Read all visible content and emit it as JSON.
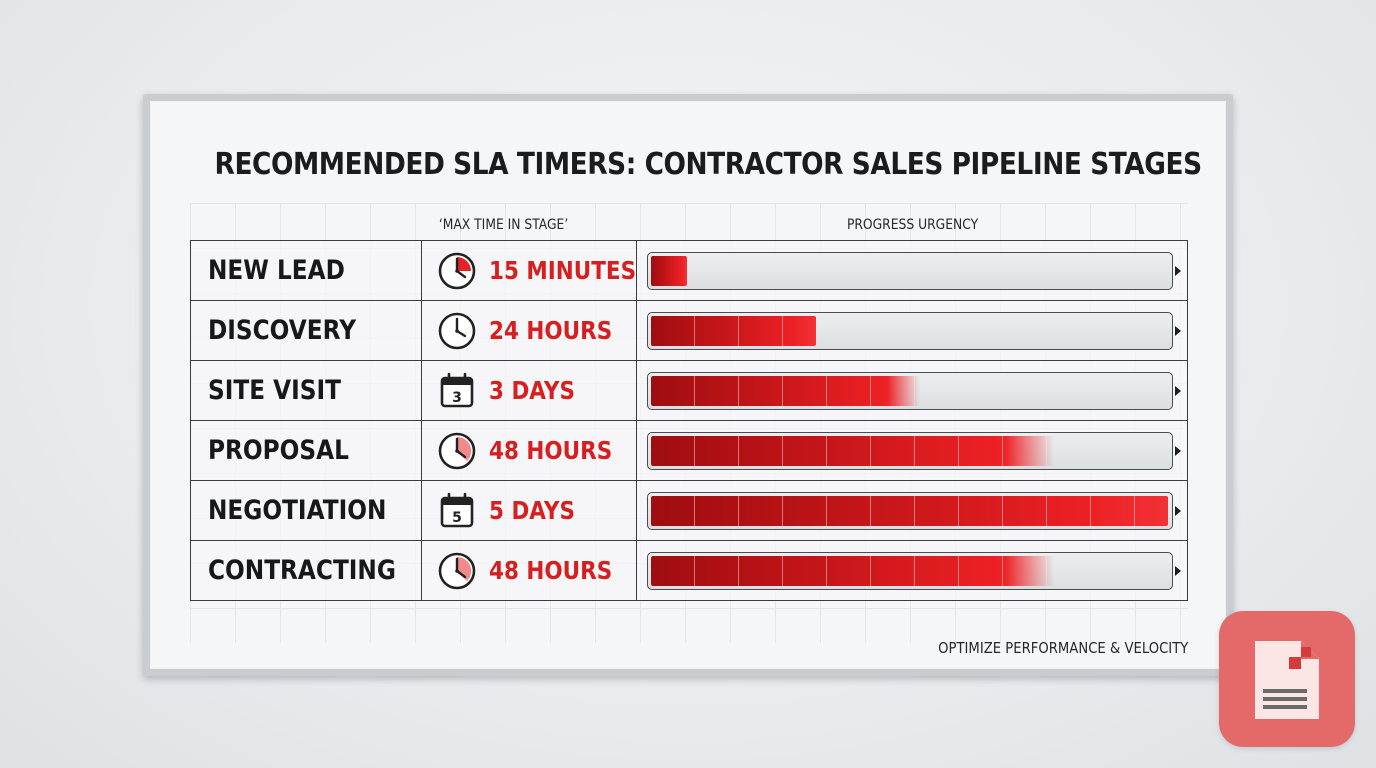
{
  "title": "RECOMMENDED SLA TIMERS: CONTRACTOR SALES PIPELINE STAGES",
  "headers": {
    "max_time": "‘MAX TIME IN STAGE’",
    "urgency": "PROGRESS URGENCY"
  },
  "colors": {
    "accent_red": "#d81f1f",
    "bar_dark": "#9e0d10",
    "bar_bright": "#f13236",
    "board": "#f5f6f7",
    "badge": "#e46a6a"
  },
  "stages": [
    {
      "stage": "NEW LEAD",
      "icon": "stopwatch-icon",
      "time": "15 MINUTES",
      "urgency": 0.07
    },
    {
      "stage": "DISCOVERY",
      "icon": "clock-icon",
      "time": "24 HOURS",
      "urgency": 0.32
    },
    {
      "stage": "SITE VISIT",
      "icon": "calendar-icon",
      "icon_text": "3",
      "time": "3 DAYS",
      "urgency": 0.52
    },
    {
      "stage": "PROPOSAL",
      "icon": "stopwatch-icon",
      "time": "48 HOURS",
      "urgency": 0.78
    },
    {
      "stage": "NEGOTIATION",
      "icon": "calendar-icon",
      "icon_text": "5",
      "time": "5 DAYS",
      "urgency": 1.0
    },
    {
      "stage": "CONTRACTING",
      "icon": "stopwatch-icon",
      "time": "48 HOURS",
      "urgency": 0.78
    }
  ],
  "footer": "OPTIMIZE PERFORMANCE & VELOCITY",
  "badge_icon": "document-icon"
}
